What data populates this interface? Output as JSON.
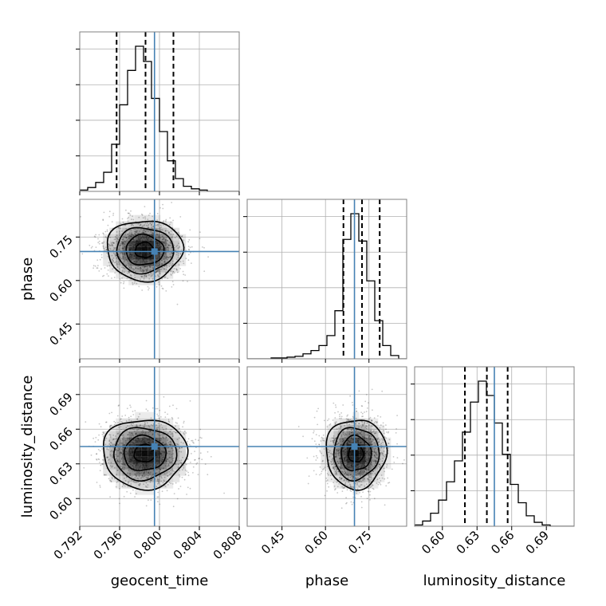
{
  "chart_data": {
    "type": "corner",
    "parameters": [
      "geocent_time",
      "phase",
      "luminosity_distance"
    ],
    "truths": {
      "geocent_time": 0.7995,
      "phase": 0.7,
      "luminosity_distance": 0.645
    },
    "grid": true,
    "axes": {
      "geocent_time": {
        "range": [
          0.792,
          0.808
        ],
        "ticks": [
          0.792,
          0.796,
          0.8,
          0.804,
          0.808
        ],
        "tick_labels": [
          "0.792",
          "0.796",
          "0.800",
          "0.804",
          "0.808"
        ]
      },
      "phase": {
        "range": [
          0.33,
          0.88
        ],
        "ticks": [
          0.45,
          0.6,
          0.75
        ],
        "tick_labels": [
          "0.45",
          "0.60",
          "0.75"
        ]
      },
      "luminosity_distance": {
        "range": [
          0.576,
          0.714
        ],
        "ticks": [
          0.6,
          0.63,
          0.66,
          0.69
        ],
        "tick_labels": [
          "0.60",
          "0.63",
          "0.66",
          "0.69"
        ]
      }
    },
    "histograms": {
      "geocent_time": {
        "bin_edges": [
          0.792,
          0.7928,
          0.7936,
          0.7944,
          0.7952,
          0.796,
          0.7968,
          0.7976,
          0.7984,
          0.7992,
          0.8,
          0.8008,
          0.8016,
          0.8024,
          0.8032,
          0.804,
          0.8048,
          0.8056,
          0.8064,
          0.8072,
          0.808
        ],
        "counts": [
          1,
          3,
          7,
          15,
          37,
          68,
          95,
          114,
          102,
          73,
          47,
          24,
          10,
          4,
          2,
          1,
          0,
          0,
          0,
          0
        ],
        "quantiles": [
          0.7957,
          0.7986,
          0.8014
        ]
      },
      "phase": {
        "bin_edges": [
          0.33,
          0.3575,
          0.385,
          0.4125,
          0.44,
          0.4675,
          0.495,
          0.5225,
          0.55,
          0.5775,
          0.605,
          0.6325,
          0.66,
          0.6875,
          0.715,
          0.7425,
          0.77,
          0.7975,
          0.825,
          0.8525,
          0.88
        ],
        "counts": [
          0,
          0,
          0,
          1,
          1,
          2,
          3,
          6,
          10,
          16,
          28,
          58,
          144,
          175,
          142,
          94,
          46,
          16,
          4,
          0
        ],
        "quantiles": [
          0.662,
          0.726,
          0.787
        ]
      },
      "luminosity_distance": {
        "bin_edges": [
          0.576,
          0.5829,
          0.5898,
          0.5967,
          0.6036,
          0.6105,
          0.6174,
          0.6243,
          0.6312,
          0.6381,
          0.645,
          0.6519,
          0.6588,
          0.6657,
          0.6726,
          0.6795,
          0.6864,
          0.6933,
          0.7002,
          0.7071,
          0.714
        ],
        "counts": [
          1,
          4,
          10,
          20,
          34,
          50,
          72,
          95,
          111,
          100,
          79,
          55,
          32,
          18,
          8,
          3,
          1,
          0,
          0,
          0
        ],
        "quantiles": [
          0.6195,
          0.6385,
          0.6565
        ]
      }
    },
    "joint_2d": [
      {
        "x": "geocent_time",
        "y": "phase",
        "mean": [
          0.7985,
          0.705
        ],
        "sd": [
          0.0019,
          0.052
        ],
        "rho": 0.0
      },
      {
        "x": "geocent_time",
        "y": "luminosity_distance",
        "mean": [
          0.7985,
          0.639
        ],
        "sd": [
          0.0021,
          0.015
        ],
        "rho": 0.0
      },
      {
        "x": "phase",
        "y": "luminosity_distance",
        "mean": [
          0.705,
          0.639
        ],
        "sd": [
          0.052,
          0.015
        ],
        "rho": 0.0
      }
    ],
    "contour_levels": [
      "0.5",
      "1.0",
      "1.5",
      "2.0"
    ],
    "colors": {
      "hist": "#000000",
      "truth": "#4682b4",
      "grid": "#b0b0b0",
      "points": "#000000",
      "density": "#000000"
    },
    "xlabels": [
      "geocent_time",
      "phase",
      "luminosity_distance"
    ],
    "ylabels": [
      "phase",
      "luminosity_distance"
    ]
  }
}
